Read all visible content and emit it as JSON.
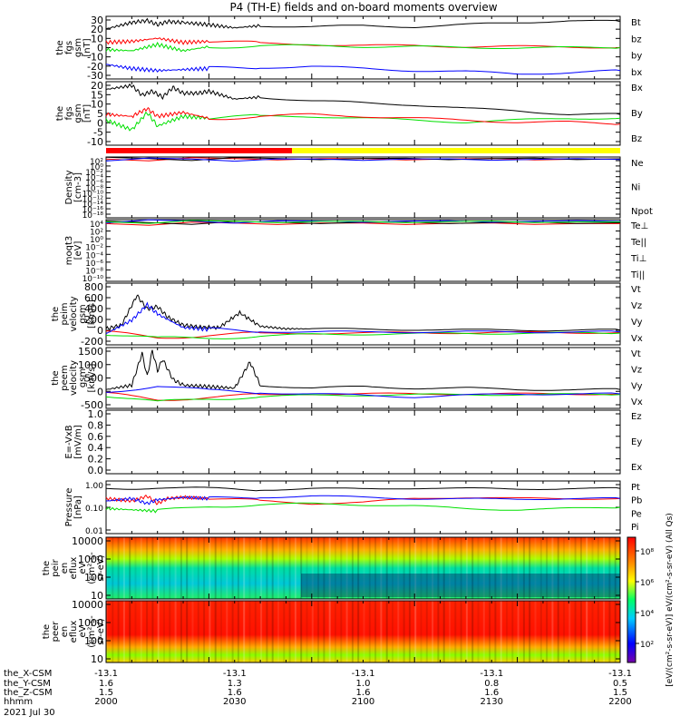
{
  "title": "P4 (TH-E) fields and on-board moments overview",
  "footer": {
    "date": "2021 Jul 30",
    "row_labels": [
      "the_X-CSM",
      "the_Y-CSM",
      "the_Z-CSM",
      "hhmm"
    ],
    "ticks": [
      {
        "x": "-13.1",
        "y": "1.6",
        "z": "1.5",
        "t": "2000"
      },
      {
        "x": "-13.1",
        "y": "1.3",
        "z": "1.6",
        "t": "2030"
      },
      {
        "x": "-13.1",
        "y": "1.0",
        "z": "1.6",
        "t": "2100"
      },
      {
        "x": "-13.1",
        "y": "0.8",
        "z": "1.6",
        "t": "2130"
      },
      {
        "x": "-13.1",
        "y": "0.5",
        "z": "1.5",
        "t": "2200"
      }
    ]
  },
  "colorbar": {
    "label": "[eV/(cm²-s-sr-eV)] eV/(cm²-s-sr-eV) (All Qs)",
    "ticks": [
      "10⁸",
      "10⁶",
      "10⁴",
      "10²"
    ]
  },
  "colors": {
    "black": "#000000",
    "red": "#ff0000",
    "green": "#00e000",
    "blue": "#0000ff",
    "yellow": "#ffff00"
  },
  "chart_data": [
    {
      "id": "fgs",
      "type": "line",
      "ylabel": [
        "the",
        "fgs",
        "gsm",
        "[nT]"
      ],
      "yticks": [
        "30",
        "20",
        "10",
        "0",
        "-10",
        "-20",
        "-30"
      ],
      "ylim": [
        -30,
        30
      ],
      "series": [
        {
          "name": "Bt",
          "color": "#000000",
          "x": [
            0,
            5,
            8,
            10,
            12,
            15,
            20,
            25,
            30,
            40,
            50,
            60,
            70,
            80,
            90,
            100
          ],
          "y": [
            18,
            24,
            26,
            22,
            25,
            24,
            22,
            19,
            21,
            20,
            21,
            20,
            22,
            24,
            26,
            25
          ]
        },
        {
          "name": "bz",
          "color": "#ff0000",
          "x": [
            0,
            5,
            10,
            15,
            20,
            30,
            40,
            50,
            60,
            70,
            80,
            90,
            100
          ],
          "y": [
            5,
            6,
            9,
            5,
            6,
            4,
            3,
            2,
            2,
            1,
            1,
            1,
            0
          ]
        },
        {
          "name": "by",
          "color": "#00e000",
          "x": [
            0,
            5,
            10,
            15,
            20,
            30,
            40,
            50,
            60,
            70,
            80,
            90,
            100
          ],
          "y": [
            -2,
            -3,
            3,
            -3,
            1,
            2,
            2,
            1,
            1,
            0,
            0,
            0,
            0
          ]
        },
        {
          "name": "bx",
          "color": "#0000ff",
          "x": [
            0,
            5,
            10,
            15,
            20,
            30,
            40,
            50,
            60,
            70,
            80,
            90,
            100
          ],
          "y": [
            -16,
            -20,
            -22,
            -21,
            -20,
            -19,
            -18,
            -20,
            -22,
            -23,
            -25,
            -24,
            -22
          ]
        }
      ]
    },
    {
      "id": "fgs_gsm",
      "type": "line",
      "ylabel": [
        "the",
        "fgs",
        "gsm",
        "[nT]"
      ],
      "yticks": [
        "20",
        "15",
        "10",
        "5",
        "0",
        "-5",
        "-10"
      ],
      "ylim": [
        -13,
        20
      ],
      "series": [
        {
          "name": "Bx",
          "color": "#000000",
          "x": [
            0,
            5,
            7,
            9,
            11,
            13,
            15,
            18,
            20,
            25,
            30,
            40,
            50,
            60,
            70,
            80,
            90,
            100
          ],
          "y": [
            16,
            18,
            13,
            15,
            12,
            17,
            14,
            14,
            15,
            11,
            12,
            10,
            9,
            8,
            6,
            5,
            3,
            3
          ]
        },
        {
          "name": "By",
          "color": "#00e000",
          "x": [
            0,
            5,
            8,
            10,
            15,
            20,
            30,
            40,
            50,
            60,
            70,
            80,
            90,
            100
          ],
          "y": [
            0,
            -5,
            4,
            -3,
            2,
            1,
            2,
            2,
            1,
            0,
            -1,
            0,
            1,
            1
          ]
        },
        {
          "name": "Bz",
          "color": "#ff0000",
          "x": [
            0,
            5,
            8,
            10,
            15,
            20,
            30,
            40,
            50,
            60,
            70,
            80,
            90,
            100
          ],
          "y": [
            3,
            2,
            6,
            2,
            4,
            1,
            2,
            3,
            2,
            1,
            0,
            -1,
            -1,
            -2
          ]
        }
      ]
    },
    {
      "id": "density",
      "type": "line",
      "ylabel": [
        "Density",
        "[cm-3]"
      ],
      "yticks": [
        "10²",
        "10⁰",
        "10⁻²",
        "10⁻⁴",
        "10⁻⁶",
        "10⁻⁸",
        "10⁻¹⁰",
        "10⁻¹²",
        "10⁻¹⁴",
        "10⁻¹⁶",
        "10⁻¹⁸"
      ],
      "ylim": [
        -18,
        2
      ],
      "yscale": "log",
      "series": [
        {
          "name": "Ne",
          "color": "#ff0000",
          "x": [
            0,
            100
          ],
          "y": [
            1.3,
            1.3
          ]
        },
        {
          "name": "Ni",
          "color": "#000000",
          "x": [
            0,
            100
          ],
          "y": [
            1.4,
            1.4
          ]
        },
        {
          "name": "Npot",
          "color": "#0000ff",
          "x": [
            0,
            100
          ],
          "y": [
            1.2,
            1.2
          ]
        }
      ]
    },
    {
      "id": "temp",
      "type": "line",
      "ylabel": [
        "moqt3",
        "[eV]"
      ],
      "yticks": [
        "10⁴",
        "10²",
        "10⁰",
        "10⁻²",
        "10⁻⁴",
        "10⁻⁶",
        "10⁻⁸",
        "10⁻¹⁰"
      ],
      "ylim": [
        -10,
        4
      ],
      "yscale": "log",
      "series": [
        {
          "name": "Te⊥",
          "color": "#ff0000",
          "x": [
            0,
            100
          ],
          "y": [
            3.1,
            3.1
          ]
        },
        {
          "name": "Te||",
          "color": "#000000",
          "x": [
            0,
            100
          ],
          "y": [
            3.3,
            3.3
          ]
        },
        {
          "name": "Ti⊥",
          "color": "#0000ff",
          "x": [
            0,
            100
          ],
          "y": [
            3.6,
            3.6
          ]
        },
        {
          "name": "Ti||",
          "color": "#00e000",
          "x": [
            0,
            100
          ],
          "y": [
            3.5,
            3.5
          ]
        }
      ]
    },
    {
      "id": "peim",
      "type": "line",
      "ylabel": [
        "the",
        "peim",
        "velocity",
        "gsm",
        "[km/s]"
      ],
      "yticks": [
        "800",
        "600",
        "400",
        "200",
        "0",
        "-200"
      ],
      "ylim": [
        -200,
        800
      ],
      "series": [
        {
          "name": "Vt",
          "color": "#000000",
          "x": [
            0,
            3,
            6,
            8,
            10,
            12,
            15,
            18,
            22,
            26,
            30,
            35,
            40,
            50,
            60,
            70,
            80,
            90,
            100
          ],
          "y": [
            60,
            120,
            600,
            380,
            420,
            250,
            120,
            90,
            80,
            320,
            100,
            60,
            60,
            50,
            50,
            40,
            40,
            40,
            40
          ]
        },
        {
          "name": "Vz",
          "color": "#ff0000",
          "x": [
            0,
            10,
            20,
            30,
            40,
            60,
            80,
            100
          ],
          "y": [
            0,
            -80,
            -40,
            -20,
            -10,
            -5,
            0,
            0
          ]
        },
        {
          "name": "Vy",
          "color": "#00e000",
          "x": [
            0,
            10,
            20,
            30,
            40,
            60,
            80,
            100
          ],
          "y": [
            -20,
            -100,
            -80,
            -60,
            -30,
            -20,
            -10,
            -10
          ]
        },
        {
          "name": "Vx",
          "color": "#0000ff",
          "x": [
            0,
            5,
            8,
            10,
            15,
            20,
            30,
            40,
            60,
            80,
            100
          ],
          "y": [
            -20,
            200,
            450,
            300,
            80,
            50,
            20,
            10,
            10,
            10,
            10
          ]
        }
      ]
    },
    {
      "id": "peem",
      "type": "line",
      "ylabel": [
        "the",
        "peem",
        "velocity",
        "gsm",
        "[km/s]"
      ],
      "yticks": [
        "1500",
        "1000",
        "500",
        "0",
        "-500"
      ],
      "ylim": [
        -500,
        1600
      ],
      "series": [
        {
          "name": "Vt",
          "color": "#000000",
          "x": [
            0,
            5,
            7,
            8,
            9,
            10,
            11,
            13,
            15,
            20,
            25,
            28,
            30,
            40,
            50,
            60,
            70,
            80,
            90,
            100
          ],
          "y": [
            150,
            300,
            1400,
            600,
            1500,
            800,
            1200,
            500,
            300,
            250,
            200,
            1100,
            300,
            200,
            250,
            200,
            200,
            150,
            150,
            150
          ]
        },
        {
          "name": "Vz",
          "color": "#ff0000",
          "x": [
            0,
            10,
            20,
            30,
            40,
            60,
            80,
            100
          ],
          "y": [
            0,
            -200,
            -100,
            -50,
            0,
            0,
            0,
            0
          ]
        },
        {
          "name": "Vy",
          "color": "#00e000",
          "x": [
            0,
            10,
            20,
            30,
            40,
            60,
            80,
            100
          ],
          "y": [
            -50,
            -300,
            -150,
            -100,
            -50,
            -30,
            -20,
            -20
          ]
        },
        {
          "name": "Vx",
          "color": "#0000ff",
          "x": [
            0,
            10,
            20,
            30,
            40,
            60,
            80,
            100
          ],
          "y": [
            50,
            300,
            100,
            50,
            0,
            -100,
            0,
            0
          ]
        }
      ]
    },
    {
      "id": "efield",
      "type": "line",
      "ylabel": [
        "E=-VxB",
        "[mV/m]"
      ],
      "yticks": [
        "1.0",
        "0.8",
        "0.6",
        "0.4",
        "0.2",
        "0.0"
      ],
      "ylim": [
        0,
        1
      ],
      "series": [
        {
          "name": "Ez",
          "color": "#ff0000",
          "x": [],
          "y": []
        },
        {
          "name": "Ey",
          "color": "#00e000",
          "x": [],
          "y": []
        },
        {
          "name": "Ex",
          "color": "#0000ff",
          "x": [],
          "y": []
        }
      ]
    },
    {
      "id": "pressure",
      "type": "line",
      "ylabel": [
        "Pressure",
        "[nPa]"
      ],
      "yticks": [
        "1.00",
        "0.10",
        "0.01"
      ],
      "ylim": [
        -2,
        0.1
      ],
      "yscale": "log",
      "series": [
        {
          "name": "Pt",
          "color": "#000000",
          "x": [
            0,
            10,
            20,
            30,
            40,
            50,
            60,
            70,
            80,
            90,
            100
          ],
          "y": [
            -0.2,
            -0.15,
            -0.22,
            -0.25,
            -0.2,
            -0.22,
            -0.18,
            -0.2,
            -0.22,
            -0.2,
            -0.2
          ]
        },
        {
          "name": "Pb",
          "color": "#ff0000",
          "x": [
            0,
            5,
            8,
            10,
            12,
            15,
            20,
            30,
            40,
            50,
            60,
            70,
            80,
            90,
            100
          ],
          "y": [
            -0.6,
            -0.7,
            -0.5,
            -0.8,
            -0.6,
            -0.55,
            -0.6,
            -0.7,
            -0.8,
            -0.75,
            -0.6,
            -0.55,
            -0.6,
            -0.6,
            -0.6
          ]
        },
        {
          "name": "Pe",
          "color": "#00e000",
          "x": [
            0,
            5,
            10,
            20,
            30,
            40,
            50,
            60,
            70,
            80,
            90,
            100
          ],
          "y": [
            -1.0,
            -1.05,
            -1.1,
            -0.9,
            -0.85,
            -0.8,
            -0.85,
            -0.9,
            -1.0,
            -1.05,
            -1.0,
            -0.95
          ]
        },
        {
          "name": "Pi",
          "color": "#0000ff",
          "x": [
            0,
            5,
            8,
            10,
            15,
            20,
            30,
            40,
            50,
            60,
            70,
            80,
            90,
            100
          ],
          "y": [
            -0.7,
            -0.6,
            -0.8,
            -0.65,
            -0.55,
            -0.6,
            -0.55,
            -0.5,
            -0.55,
            -0.6,
            -0.62,
            -0.62,
            -0.6,
            -0.6
          ]
        }
      ]
    },
    {
      "id": "peir",
      "type": "heatmap",
      "ylabel": [
        "the",
        "peir",
        "en",
        "eflux",
        "eV",
        "(cm²-s-",
        "sr-eV)"
      ],
      "yticks": [
        "10000",
        "1000",
        "100",
        "10"
      ]
    },
    {
      "id": "peer",
      "type": "heatmap",
      "ylabel": [
        "the",
        "peer",
        "en",
        "eflux",
        "eV",
        "(cm²-s-",
        "sr-eV)"
      ],
      "yticks": [
        "10000",
        "1000",
        "100",
        "10"
      ]
    }
  ]
}
